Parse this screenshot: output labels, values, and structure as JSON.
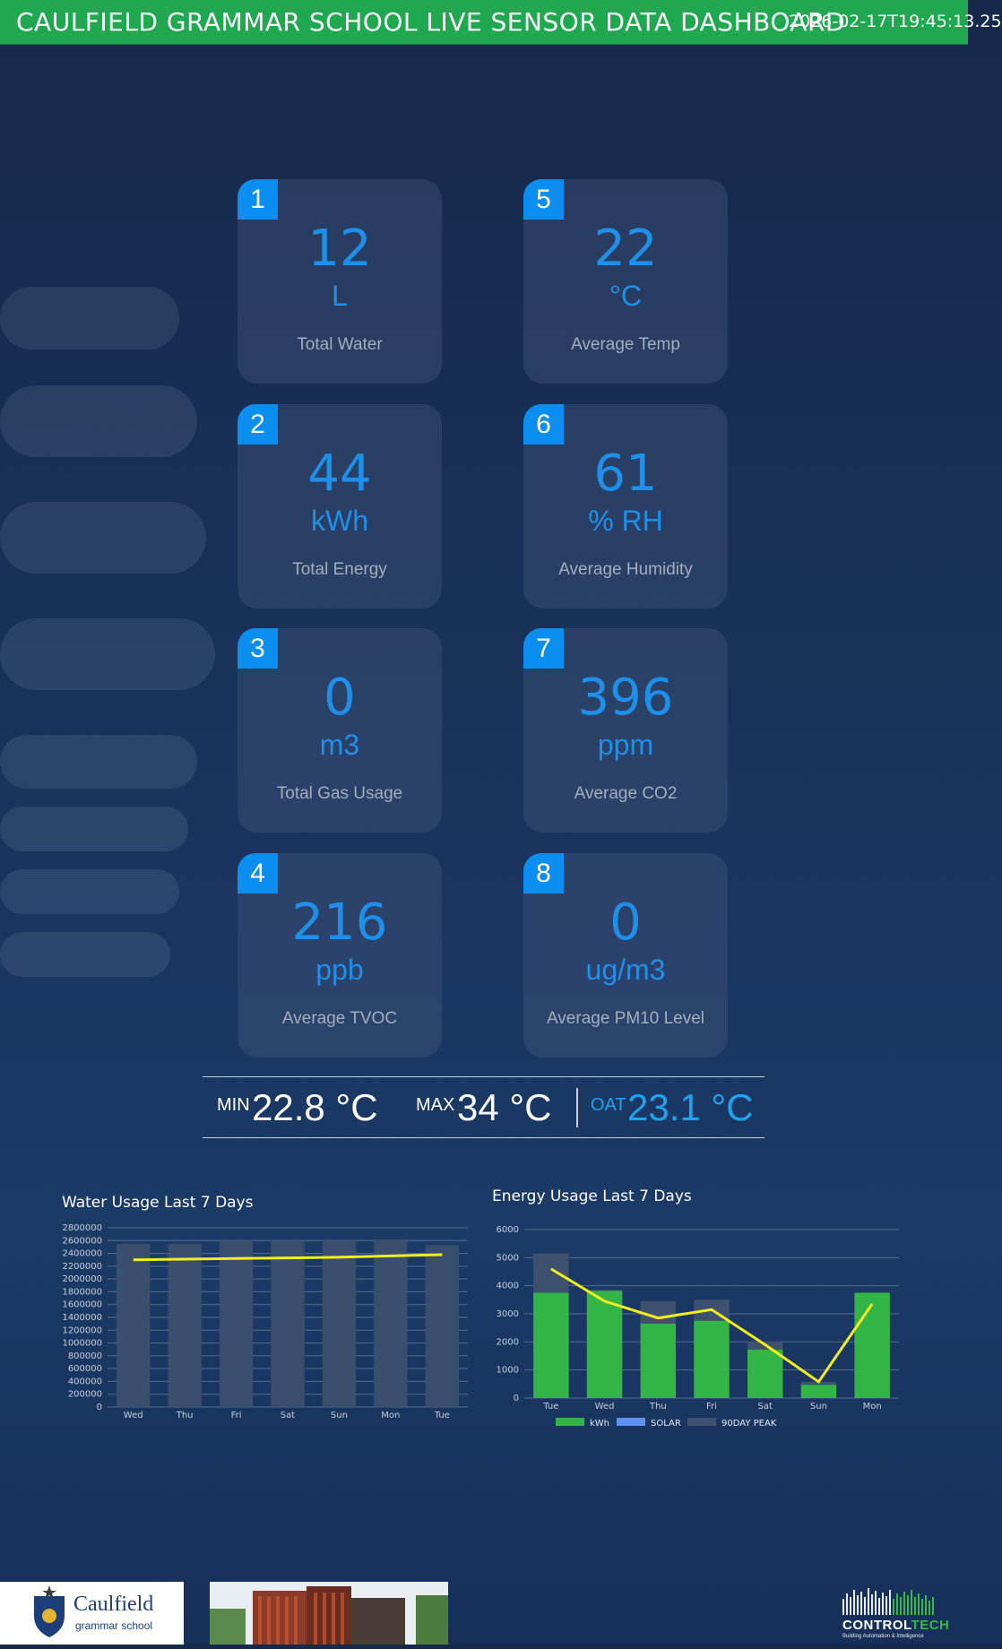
{
  "header": {
    "title": "CAULFIELD GRAMMAR SCHOOL LIVE SENSOR DATA DASHBOARD",
    "timestamp": "2026-02-17T19:45:13.25"
  },
  "cards": [
    {
      "badge": "1",
      "value": "12",
      "unit": "L",
      "label": "Total Water"
    },
    {
      "badge": "2",
      "value": "44",
      "unit": "kWh",
      "label": "Total Energy"
    },
    {
      "badge": "3",
      "value": "0",
      "unit": "m3",
      "label": "Total Gas Usage"
    },
    {
      "badge": "4",
      "value": "216",
      "unit": "ppb",
      "label": "Average TVOC"
    },
    {
      "badge": "5",
      "value": "22",
      "unit": "°C",
      "label": "Average Temp"
    },
    {
      "badge": "6",
      "value": "61",
      "unit": "% RH",
      "label": "Average Humidity"
    },
    {
      "badge": "7",
      "value": "396",
      "unit": "ppm",
      "label": "Average CO2"
    },
    {
      "badge": "8",
      "value": "0",
      "unit": "ug/m3",
      "label": "Average PM10 Level"
    }
  ],
  "temps": {
    "min_label": "MIN",
    "min_value": "22.8 °C",
    "max_label": "MAX",
    "max_value": "34 °C",
    "oat_label": "OAT",
    "oat_value": "23.1 °C"
  },
  "chart_data": [
    {
      "type": "bar",
      "title": "Water Usage Last 7 Days",
      "categories": [
        "Wed",
        "Thu",
        "Fri",
        "Sat",
        "Sun",
        "Mon",
        "Tue"
      ],
      "ylim": [
        0,
        2800000
      ],
      "yticks": [
        "2800000",
        "2600000",
        "2400000",
        "2200000",
        "2000000",
        "1800000",
        "1600000",
        "1400000",
        "1200000",
        "1000000",
        "800000",
        "600000",
        "400000",
        "200000",
        "0"
      ],
      "series": [
        {
          "kind": "bar",
          "color": "#1fae52",
          "values": [
            0,
            0,
            0,
            0,
            0,
            0,
            0
          ]
        },
        {
          "kind": "bar",
          "color": "#3a4e6e",
          "values": [
            2550000,
            2550000,
            2600000,
            2600000,
            2600000,
            2620000,
            2530000
          ]
        },
        {
          "kind": "line",
          "color": "#f4ee1c",
          "values": [
            2300000,
            2310000,
            2320000,
            2330000,
            2340000,
            2360000,
            2380000
          ]
        }
      ]
    },
    {
      "type": "bar",
      "title": "Energy Usage Last 7 Days",
      "categories": [
        "Tue",
        "Wed",
        "Thu",
        "Fri",
        "Sat",
        "Sun",
        "Mon"
      ],
      "ylim": [
        0,
        6000
      ],
      "yticks": [
        "6000",
        "5000",
        "4000",
        "3000",
        "2000",
        "1000",
        "0"
      ],
      "legend_position": "bottom",
      "series": [
        {
          "kind": "bar",
          "name": "kWh",
          "color": "#32b447",
          "values": [
            3750,
            3820,
            2650,
            2750,
            1720,
            470,
            3750
          ]
        },
        {
          "kind": "bar",
          "name": "SOLAR",
          "color": "#5f8ff0",
          "values": [
            0,
            0,
            0,
            0,
            0,
            0,
            0
          ]
        },
        {
          "kind": "bar",
          "name": "90DAY PEAK",
          "color": "#3e516f",
          "values": [
            5150,
            3850,
            3450,
            3500,
            2020,
            580,
            3700
          ]
        },
        {
          "kind": "line",
          "color": "#f4ee1c",
          "values": [
            4600,
            3450,
            2850,
            3150,
            1900,
            580,
            3350
          ]
        }
      ]
    }
  ],
  "footer": {
    "school_name": "Caulfield",
    "school_sub": "grammar school",
    "brand": "CONTROLTECH",
    "brand_tag": "Building Automation & Intelligence"
  }
}
